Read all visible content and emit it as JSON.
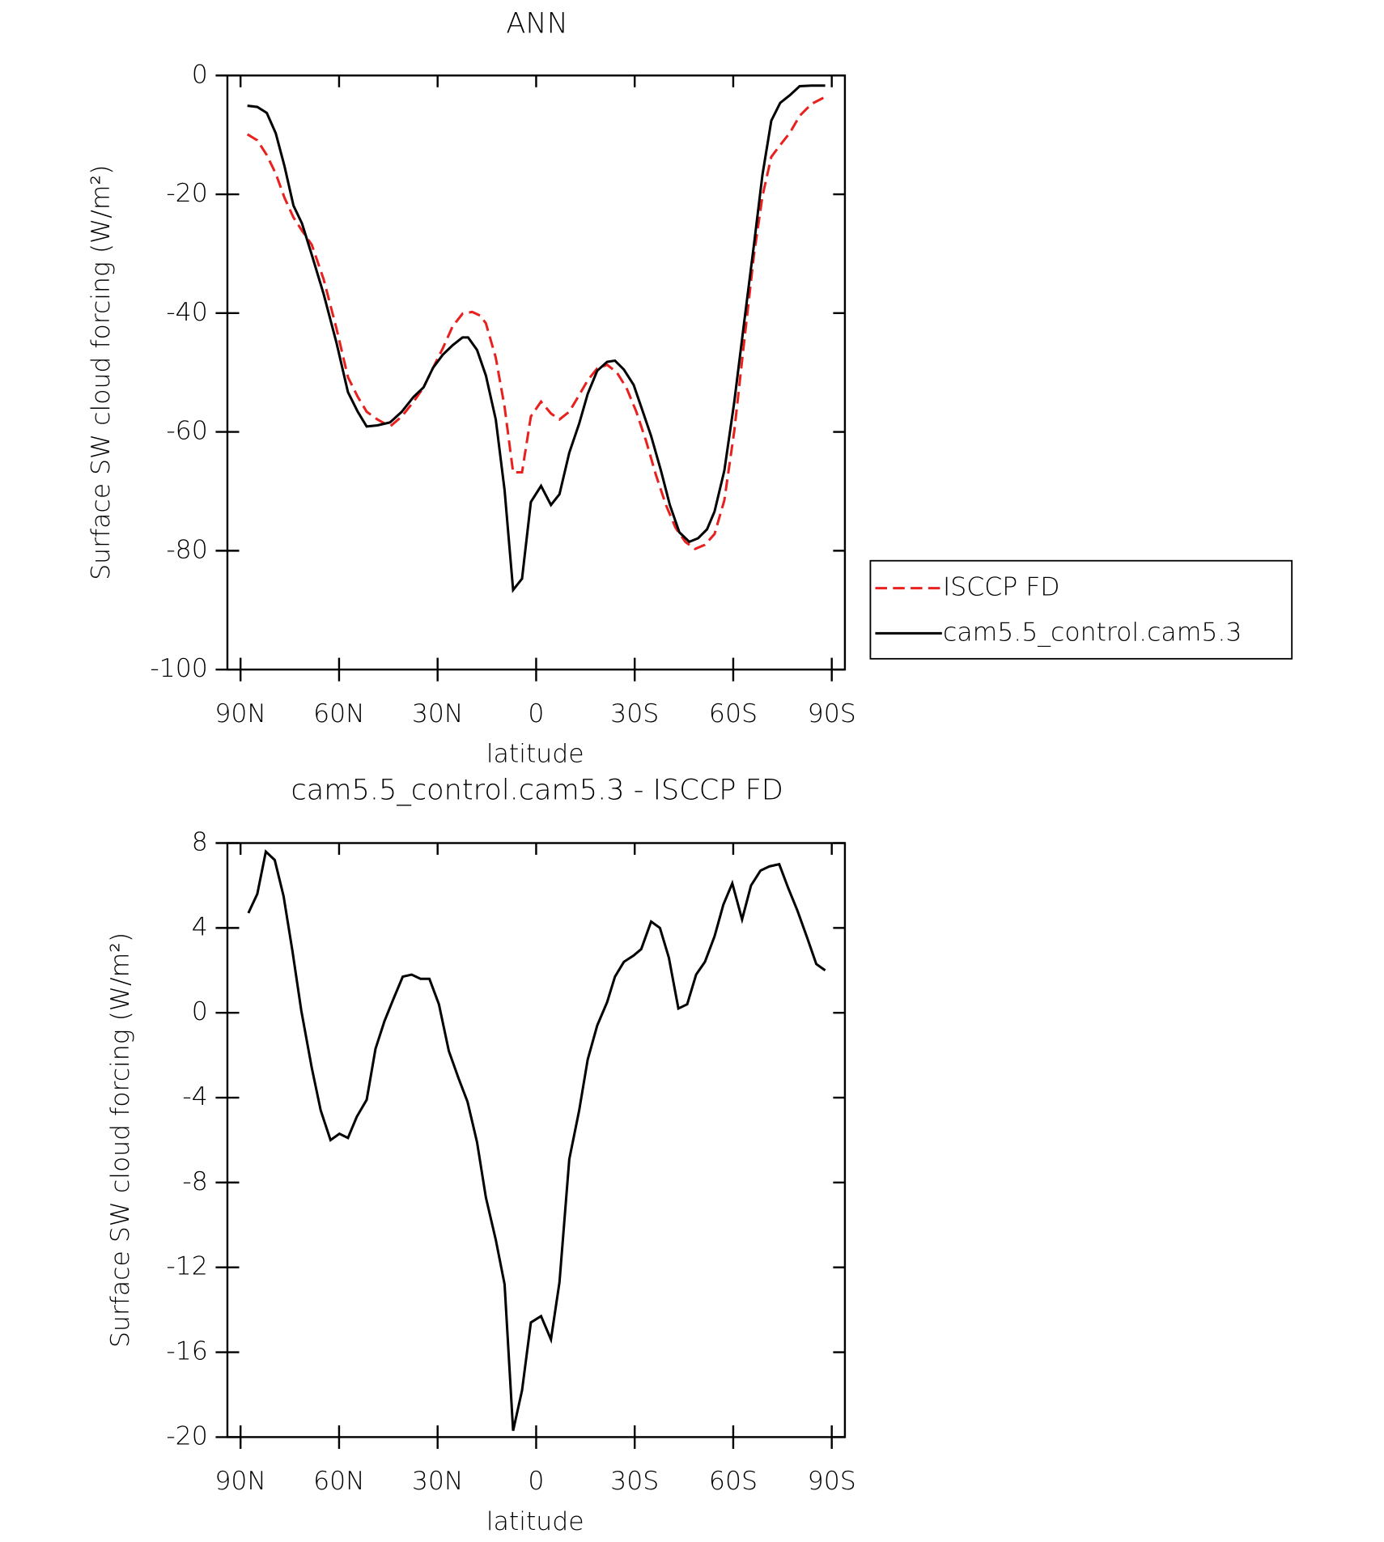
{
  "chart_data": [
    {
      "type": "line",
      "title": "ANN",
      "xlabel": "latitude",
      "ylabel": "Surface SW cloud forcing (W/m²)",
      "xlim": [
        94,
        -94
      ],
      "ylim": [
        -100,
        0
      ],
      "xticks": [
        {
          "value": 90,
          "label": "90N"
        },
        {
          "value": 60,
          "label": "60N"
        },
        {
          "value": 30,
          "label": "30N"
        },
        0,
        {
          "value": -30,
          "label": "30S"
        },
        {
          "value": -60,
          "label": "60S"
        },
        {
          "value": -90,
          "label": "90S"
        }
      ],
      "yticks": [
        0,
        -20,
        -40,
        -60,
        -80,
        -100
      ],
      "legend": "outside right",
      "series": [
        {
          "name": "ISCCP FD",
          "color": "#e8211f",
          "dash": true,
          "x": [
            87.9,
            84.9,
            82,
            79.3,
            76.6,
            73.9,
            71.3,
            68.3,
            64.7,
            60.8,
            57.3,
            54.3,
            51.6,
            48.3,
            44.5,
            40.9,
            37.3,
            34.3,
            31.4,
            28.4,
            25.4,
            22.4,
            19.5,
            17.1,
            15.3,
            12.3,
            9.6,
            7,
            4.3,
            1.6,
            -1.5,
            -4.5,
            -7.1,
            -10.1,
            -13.1,
            -15.7,
            -18.6,
            -21.6,
            -24.6,
            -27.5,
            -30.5,
            -33.5,
            -36.5,
            -39.5,
            -42.4,
            -45.4,
            -48.4,
            -51.4,
            -54.3,
            -57.3,
            -60.3,
            -63.3,
            -66.3,
            -68.9,
            -71.6,
            -74.3,
            -77.3,
            -80.2,
            -83.8,
            -88
          ],
          "values": [
            -9.9,
            -10.9,
            -13.4,
            -16.5,
            -20.6,
            -23.9,
            -26.1,
            -28.5,
            -34.3,
            -42.6,
            -50.8,
            -54.1,
            -56.6,
            -57.9,
            -59.1,
            -57.4,
            -54.9,
            -52.5,
            -49.2,
            -45.9,
            -42.2,
            -40.1,
            -39.8,
            -40.4,
            -41.7,
            -47.5,
            -55.8,
            -66.8,
            -66.8,
            -57.4,
            -54.9,
            -56.9,
            -57.9,
            -56.6,
            -53.8,
            -51.3,
            -49.3,
            -48.7,
            -50,
            -52.6,
            -56.6,
            -61.6,
            -67.3,
            -72.3,
            -76.1,
            -78.5,
            -79.7,
            -79,
            -77.2,
            -71.5,
            -59.9,
            -45,
            -30.2,
            -20.3,
            -13.7,
            -11.7,
            -9.6,
            -6.8,
            -4.8,
            -3.6
          ]
        },
        {
          "name": "cam5.5_control.cam5.3",
          "color": "#000000",
          "dash": false,
          "x": [
            87.9,
            84.9,
            82,
            79.3,
            76.6,
            73.9,
            71.3,
            68.3,
            64.7,
            60.8,
            57.3,
            54.3,
            51.6,
            48.3,
            44.5,
            40.9,
            37.3,
            34.3,
            31.4,
            28.4,
            25.4,
            22.4,
            20.7,
            18,
            15.3,
            12.3,
            9.6,
            7,
            4.3,
            1.6,
            -1.5,
            -4.5,
            -7.1,
            -10.1,
            -13.1,
            -15.7,
            -18.6,
            -21.6,
            -24,
            -26.7,
            -29.7,
            -32,
            -35,
            -38,
            -40.7,
            -43.6,
            -46.6,
            -49.3,
            -52,
            -54.3,
            -57.3,
            -60.3,
            -63.3,
            -66.3,
            -68.9,
            -71.6,
            -74.3,
            -77.3,
            -80.2,
            -83.8,
            -88
          ],
          "values": [
            -5.1,
            -5.3,
            -6.3,
            -9.7,
            -15.3,
            -21.9,
            -24.9,
            -30.2,
            -36.8,
            -45,
            -53.3,
            -56.6,
            -59.1,
            -58.9,
            -58.4,
            -56.6,
            -54.1,
            -52.5,
            -49.2,
            -47,
            -45.4,
            -44.1,
            -44.1,
            -46.2,
            -50.5,
            -57.9,
            -69.8,
            -86.6,
            -84.7,
            -71.8,
            -69.1,
            -72.3,
            -70.5,
            -63.5,
            -58.6,
            -53.6,
            -49.7,
            -48.2,
            -48,
            -49.5,
            -52.1,
            -55.8,
            -60.7,
            -66.5,
            -72.3,
            -76.9,
            -78.5,
            -77.9,
            -76.4,
            -73.4,
            -66.5,
            -55,
            -41.7,
            -28.5,
            -16.7,
            -7.6,
            -4.6,
            -3.3,
            -1.8,
            -1.7,
            -1.7
          ]
        }
      ]
    },
    {
      "type": "line",
      "title": "cam5.5_control.cam5.3 - ISCCP FD",
      "xlabel": "latitude",
      "ylabel": "Surface SW cloud forcing (W/m²)",
      "xlim": [
        94,
        -94
      ],
      "ylim": [
        -20,
        8
      ],
      "xticks": [
        {
          "value": 90,
          "label": "90N"
        },
        {
          "value": 60,
          "label": "60N"
        },
        {
          "value": 30,
          "label": "30N"
        },
        0,
        {
          "value": -30,
          "label": "30S"
        },
        {
          "value": -60,
          "label": "60S"
        },
        {
          "value": -90,
          "label": "90S"
        }
      ],
      "yticks": [
        8,
        4,
        0,
        -4,
        -8,
        -12,
        -16,
        -20
      ],
      "series": [
        {
          "color": "#000000",
          "dash": false,
          "x": [
            87.6,
            84.9,
            82.3,
            79.6,
            76.9,
            74.2,
            71.5,
            68.3,
            65.6,
            62.6,
            59.9,
            57.3,
            54.6,
            51.6,
            48.9,
            46.2,
            43.6,
            40.6,
            37.9,
            35.2,
            32.5,
            29.6,
            26.6,
            23.6,
            20.9,
            18,
            15.3,
            12.3,
            9.6,
            7,
            4.3,
            1.6,
            -1.5,
            -4.5,
            -7.1,
            -10.1,
            -13.1,
            -15.7,
            -18.6,
            -21.6,
            -24,
            -26.7,
            -29.7,
            -32,
            -35,
            -37.7,
            -40.4,
            -43.3,
            -46,
            -48.7,
            -51.4,
            -54.3,
            -57,
            -59.7,
            -62.7,
            -65.4,
            -68.3,
            -71,
            -74,
            -76.7,
            -79.6,
            -82.6,
            -85.3,
            -88
          ],
          "values": [
            4.7,
            5.6,
            7.6,
            7.2,
            5.5,
            2.9,
            0.1,
            -2.6,
            -4.6,
            -6,
            -5.7,
            -5.9,
            -4.9,
            -4.1,
            -1.7,
            -0.4,
            0.6,
            1.7,
            1.8,
            1.6,
            1.6,
            0.4,
            -1.8,
            -3.1,
            -4.2,
            -6.1,
            -8.7,
            -10.7,
            -12.8,
            -19.7,
            -17.8,
            -14.6,
            -14.3,
            -15.4,
            -12.7,
            -6.9,
            -4.6,
            -2.2,
            -0.6,
            0.5,
            1.7,
            2.4,
            2.7,
            3,
            4.3,
            4,
            2.6,
            0.2,
            0.4,
            1.8,
            2.4,
            3.6,
            5.1,
            6.1,
            4.4,
            6,
            6.7,
            6.9,
            7,
            5.9,
            4.8,
            3.5,
            2.3,
            2
          ]
        }
      ]
    }
  ]
}
